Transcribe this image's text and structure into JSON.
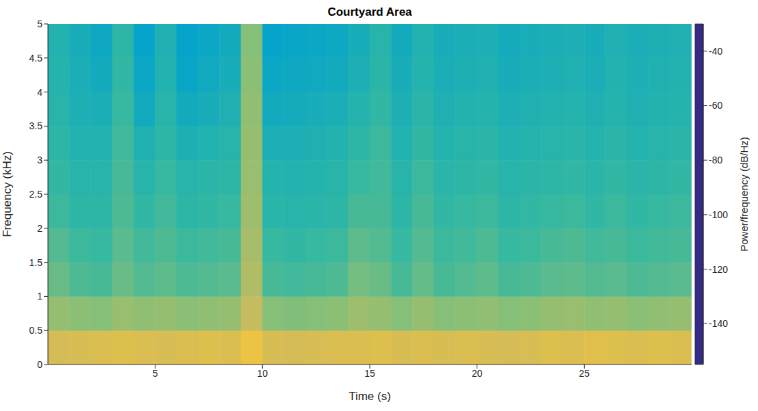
{
  "chart_data": {
    "type": "heatmap",
    "title": "Courtyard Area",
    "x_label": "Time (s)",
    "y_label": "Frequency (kHz)",
    "xlim": [
      0,
      30
    ],
    "xticks": [
      5,
      10,
      15,
      20,
      25
    ],
    "ylim": [
      0,
      5
    ],
    "yticks": [
      0,
      0.5,
      1,
      1.5,
      2,
      2.5,
      3,
      3.5,
      4,
      4.5,
      5
    ],
    "grid": false,
    "x_bins": [
      0,
      1,
      2,
      3,
      4,
      5,
      6,
      7,
      8,
      9,
      10,
      11,
      12,
      13,
      14,
      15,
      16,
      17,
      18,
      19,
      20,
      21,
      22,
      23,
      24,
      25,
      26,
      27,
      28,
      29,
      30
    ],
    "y_bins": [
      0,
      0.5,
      1,
      1.5,
      2,
      2.5,
      3,
      3.5,
      4,
      4.5,
      5
    ],
    "cells": [
      [
        -60,
        -59,
        -58,
        -57,
        -58,
        -59,
        -58,
        -57,
        -58,
        -52,
        -59,
        -60,
        -59,
        -58,
        -58,
        -57,
        -59,
        -58,
        -59,
        -58,
        -59,
        -60,
        -59,
        -57,
        -58,
        -56,
        -57,
        -58,
        -57,
        -58
      ],
      [
        -74,
        -76,
        -77,
        -73,
        -75,
        -74,
        -76,
        -75,
        -74,
        -64,
        -77,
        -78,
        -77,
        -76,
        -72,
        -74,
        -77,
        -74,
        -77,
        -76,
        -75,
        -77,
        -76,
        -74,
        -73,
        -75,
        -74,
        -76,
        -75,
        -74
      ],
      [
        -82,
        -87,
        -88,
        -82,
        -86,
        -84,
        -87,
        -86,
        -85,
        -68,
        -88,
        -89,
        -88,
        -87,
        -80,
        -82,
        -88,
        -83,
        -88,
        -86,
        -84,
        -88,
        -87,
        -85,
        -84,
        -86,
        -85,
        -87,
        -86,
        -85
      ],
      [
        -86,
        -90,
        -91,
        -85,
        -89,
        -87,
        -90,
        -89,
        -88,
        -70,
        -91,
        -92,
        -91,
        -90,
        -84,
        -86,
        -91,
        -86,
        -90,
        -89,
        -87,
        -91,
        -90,
        -88,
        -87,
        -89,
        -88,
        -90,
        -89,
        -88
      ],
      [
        -90,
        -93,
        -93,
        -87,
        -92,
        -89,
        -93,
        -92,
        -91,
        -72,
        -94,
        -95,
        -94,
        -93,
        -88,
        -88,
        -93,
        -88,
        -92,
        -91,
        -90,
        -93,
        -92,
        -91,
        -90,
        -92,
        -90,
        -92,
        -91,
        -90
      ],
      [
        -92,
        -95,
        -95,
        -88,
        -95,
        -91,
        -95,
        -94,
        -93,
        -73,
        -96,
        -97,
        -96,
        -95,
        -91,
        -89,
        -95,
        -90,
        -94,
        -93,
        -92,
        -95,
        -94,
        -93,
        -92,
        -94,
        -92,
        -94,
        -93,
        -92
      ],
      [
        -93,
        -97,
        -97,
        -89,
        -98,
        -93,
        -99,
        -97,
        -95,
        -74,
        -99,
        -99,
        -98,
        -97,
        -93,
        -90,
        -97,
        -92,
        -96,
        -95,
        -94,
        -97,
        -96,
        -95,
        -94,
        -96,
        -94,
        -96,
        -95,
        -94
      ],
      [
        -95,
        -99,
        -100,
        -91,
        -103,
        -95,
        -103,
        -101,
        -98,
        -75,
        -103,
        -102,
        -101,
        -100,
        -96,
        -92,
        -99,
        -94,
        -98,
        -97,
        -96,
        -99,
        -98,
        -97,
        -96,
        -98,
        -96,
        -98,
        -97,
        -96
      ],
      [
        -96,
        -100,
        -103,
        -92,
        -106,
        -97,
        -107,
        -104,
        -101,
        -76,
        -106,
        -105,
        -104,
        -103,
        -99,
        -94,
        -101,
        -96,
        -100,
        -99,
        -98,
        -101,
        -100,
        -99,
        -98,
        -100,
        -97,
        -99,
        -98,
        -97
      ],
      [
        -97,
        -101,
        -105,
        -93,
        -108,
        -98,
        -108,
        -106,
        -103,
        -77,
        -108,
        -107,
        -106,
        -105,
        -101,
        -95,
        -103,
        -97,
        -101,
        -100,
        -99,
        -102,
        -101,
        -100,
        -99,
        -101,
        -98,
        -100,
        -99,
        -98
      ]
    ],
    "colorbar": {
      "label": "Power/frequency (dB/Hz)",
      "lim": [
        -155,
        -30
      ],
      "ticks": [
        -140,
        -120,
        -100,
        -80,
        -60,
        -40
      ]
    }
  }
}
